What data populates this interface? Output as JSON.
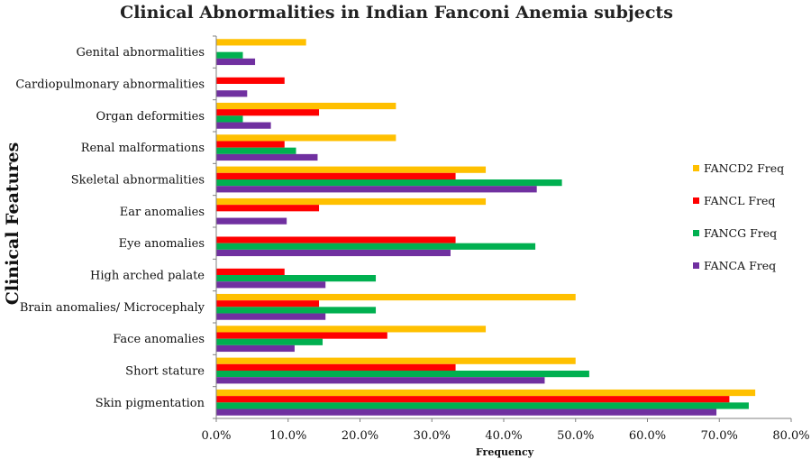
{
  "chart_data": {
    "type": "bar",
    "orientation": "horizontal",
    "title": "Clinical Abnormalities in Indian Fanconi Anemia subjects",
    "xlabel": "Frequency",
    "ylabel": "Clinical Features",
    "xlim": [
      0,
      0.8
    ],
    "x_ticks": [
      "0.0%",
      "10.0%",
      "20.0%",
      "30.0%",
      "40.0%",
      "50.0%",
      "60.0%",
      "70.0%",
      "80.0%"
    ],
    "legend_position": "right",
    "grid": false,
    "categories": [
      "Genital abnormalities",
      "Cardiopulmonary abnormalities",
      "Organ deformities",
      "Renal malformations",
      "Skeletal abnormalities",
      "Ear anomalies",
      "Eye anomalies",
      "High arched palate",
      "Brain anomalies/ Microcephaly",
      "Face anomalies",
      "Short stature",
      "Skin pigmentation"
    ],
    "series": [
      {
        "name": "FANCD2 Freq",
        "color": "#FFC000",
        "values": [
          0.125,
          0,
          0.25,
          0.25,
          0.375,
          0.375,
          0,
          0,
          0.5,
          0.375,
          0.5,
          0.75
        ]
      },
      {
        "name": "FANCL Freq",
        "color": "#FF0000",
        "values": [
          0,
          0.095,
          0.143,
          0.095,
          0.333,
          0.143,
          0.333,
          0.095,
          0.143,
          0.238,
          0.333,
          0.714
        ]
      },
      {
        "name": "FANCG Freq",
        "color": "#00B050",
        "values": [
          0.037,
          0,
          0.037,
          0.111,
          0.481,
          0,
          0.444,
          0.222,
          0.222,
          0.148,
          0.519,
          0.741
        ]
      },
      {
        "name": "FANCA Freq",
        "color": "#7030A0",
        "values": [
          0.054,
          0.043,
          0.076,
          0.141,
          0.446,
          0.098,
          0.326,
          0.152,
          0.152,
          0.109,
          0.457,
          0.696
        ]
      }
    ]
  }
}
